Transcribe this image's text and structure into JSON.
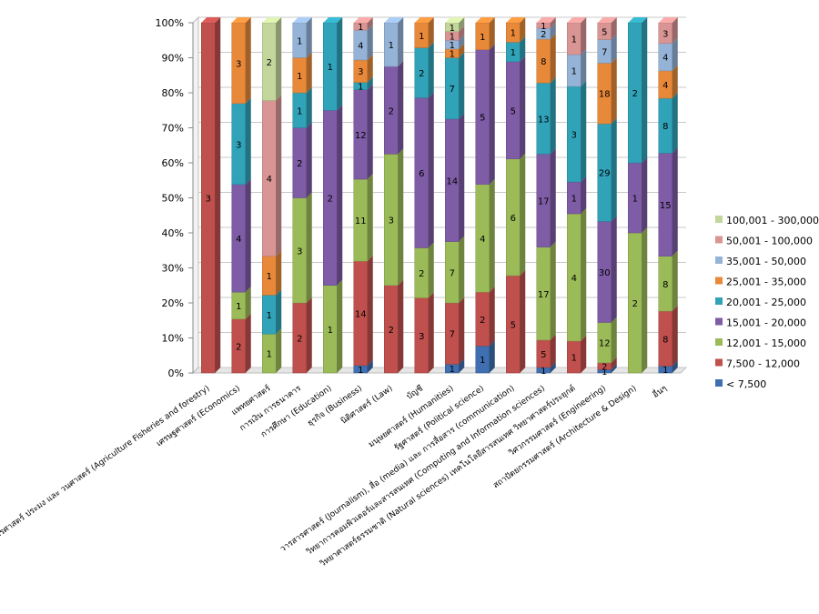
{
  "chart_data": {
    "type": "bar",
    "stacked": true,
    "percent": true,
    "title": "",
    "xlabel": "",
    "ylabel": "",
    "ylim": [
      0,
      100
    ],
    "ytick_labels": [
      "0%",
      "10%",
      "20%",
      "30%",
      "40%",
      "50%",
      "60%",
      "70%",
      "80%",
      "90%",
      "100%"
    ],
    "legend_position": "right",
    "categories": [
      "เกษตรศาสตร์ ประมง และ วนศาสตร์ (Agriculture Fisheries and forestry)",
      "เศรษฐศาสตร์ (Economics)",
      "แพทยศาสตร์",
      "การเงิน การธนาคาร",
      "การศึกษา (Education)",
      "ธุรกิจ (Business)",
      "นิติศาสตร์ (Law)",
      "บัญชี",
      "มนุษยศาสตร์ (Humanities)",
      "รัฐศาสตร์ (Political science)",
      "วารสารศาสตร์ (Journalism), สื่อ (media) และ การสื่อสาร (communication)",
      "วิทยาการคอมพิวเตอร์และสารสนเทศ (Computing and Information sciences)",
      "วิทยาศาสตร์ธรรมชาติ (Natural sciences) เทคโนโลยีสารสนเทศ วิทยาศาสตร์ประยุกต์",
      "วิศวกรรมศาสตร์ (Engineering)",
      "สถาปัตยกรรมศาสตร์ (Architecture & Design)",
      "อื่นๆ"
    ],
    "series": [
      {
        "name": "< 7,500",
        "color": "#3f6fb0",
        "values": [
          0,
          0,
          0,
          0,
          0,
          1,
          0,
          0,
          1,
          1,
          0,
          1,
          0,
          1,
          0,
          1
        ]
      },
      {
        "name": "7,500 - 12,000",
        "color": "#c0504d",
        "values": [
          3,
          2,
          0,
          2,
          0,
          14,
          2,
          3,
          7,
          2,
          5,
          5,
          1,
          2,
          0,
          8
        ]
      },
      {
        "name": "12,001 - 15,000",
        "color": "#9bbb59",
        "values": [
          0,
          1,
          1,
          3,
          1,
          11,
          3,
          2,
          7,
          4,
          6,
          17,
          4,
          12,
          2,
          8
        ]
      },
      {
        "name": "15,001 - 20,000",
        "color": "#7e5ca6",
        "values": [
          0,
          4,
          0,
          2,
          2,
          12,
          2,
          6,
          14,
          5,
          5,
          17,
          1,
          30,
          1,
          15
        ]
      },
      {
        "name": "20,001 - 25,000",
        "color": "#31a3b8",
        "values": [
          0,
          3,
          1,
          1,
          1,
          1,
          0,
          2,
          7,
          0,
          1,
          13,
          3,
          29,
          2,
          8
        ]
      },
      {
        "name": "25,001 - 35,000",
        "color": "#e8893a",
        "values": [
          0,
          3,
          1,
          1,
          0,
          3,
          0,
          1,
          1,
          1,
          1,
          8,
          0,
          18,
          0,
          4
        ]
      },
      {
        "name": "35,001 - 50,000",
        "color": "#95b3d7",
        "values": [
          0,
          0,
          0,
          1,
          0,
          4,
          1,
          0,
          1,
          0,
          0,
          2,
          1,
          7,
          0,
          4
        ]
      },
      {
        "name": "50,001 - 100,000",
        "color": "#d99594",
        "values": [
          0,
          0,
          4,
          0,
          0,
          1,
          0,
          0,
          1,
          0,
          0,
          1,
          1,
          5,
          0,
          3
        ]
      },
      {
        "name": "100,001 - 300,000",
        "color": "#c3d69b",
        "values": [
          0,
          0,
          2,
          0,
          0,
          0,
          0,
          0,
          1,
          0,
          0,
          0,
          0,
          0,
          0,
          0
        ]
      }
    ]
  }
}
